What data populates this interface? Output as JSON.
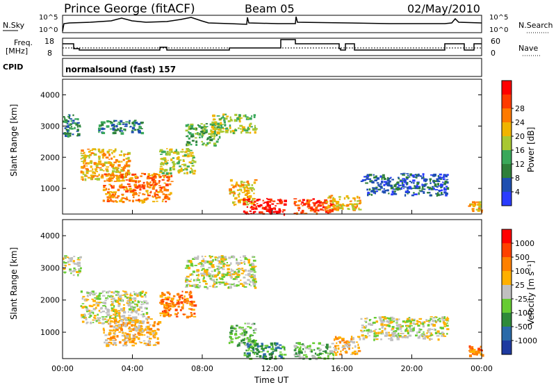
{
  "header": {
    "title": "Prince George (fitACF)",
    "beam": "Beam 05",
    "date": "02/May/2010"
  },
  "panels": {
    "nsky": {
      "label": "N.Sky",
      "ticks": [
        "10^5",
        "10^0"
      ]
    },
    "nsearch": {
      "label": "N.Search",
      "ticks": [
        "10^5",
        "10^0"
      ]
    },
    "freq": {
      "label_top": "Freq.",
      "label_bottom": "[MHz]",
      "ticks": [
        "18",
        "8"
      ]
    },
    "nave": {
      "label": "Nave",
      "ticks": [
        "60",
        "0"
      ]
    },
    "cpid": {
      "label": "CPID",
      "text": "normalsound (fast) 157"
    }
  },
  "colors": {
    "power": [
      "#2a3cff",
      "#1e4fb0",
      "#2e7f3a",
      "#3aa85a",
      "#a8c832",
      "#f0b400",
      "#ff7a00",
      "#ff3a00",
      "#ff0000"
    ],
    "velocity": [
      "#1e3aa0",
      "#2a6aa8",
      "#2e8a3a",
      "#66cc33",
      "#c0c0c0",
      "#ffb000",
      "#ff8000",
      "#ff4000",
      "#ff0000"
    ]
  },
  "chart_data": [
    {
      "type": "heatmap",
      "name": "power",
      "xlabel": "",
      "ylabel": "Slant Range [km]",
      "xlim": [
        0,
        24
      ],
      "ylim": [
        180,
        4500
      ],
      "yticks": [
        "1000",
        "2000",
        "3000",
        "4000"
      ],
      "colorbar": {
        "label": "Power [dB]",
        "ticks": [
          "4",
          "8",
          "12",
          "16",
          "20",
          "24",
          "28"
        ]
      },
      "regions": [
        {
          "t0": 0.0,
          "t1": 1.0,
          "r0": 2700,
          "r1": 3400,
          "level": 2
        },
        {
          "t0": 1.0,
          "t1": 3.8,
          "r0": 1300,
          "r1": 2300,
          "level": 5
        },
        {
          "t0": 2.3,
          "t1": 6.2,
          "r0": 600,
          "r1": 1500,
          "level": 6
        },
        {
          "t0": 2.0,
          "t1": 4.5,
          "r0": 2800,
          "r1": 3200,
          "level": 2
        },
        {
          "t0": 5.5,
          "t1": 7.5,
          "r0": 1500,
          "r1": 2300,
          "level": 4
        },
        {
          "t0": 7.0,
          "t1": 9.0,
          "r0": 2400,
          "r1": 3100,
          "level": 3
        },
        {
          "t0": 8.5,
          "t1": 11.0,
          "r0": 2800,
          "r1": 3400,
          "level": 4
        },
        {
          "t0": 9.5,
          "t1": 11.0,
          "r0": 500,
          "r1": 1300,
          "level": 5
        },
        {
          "t0": 10.3,
          "t1": 12.7,
          "r0": 200,
          "r1": 700,
          "level": 8
        },
        {
          "t0": 13.2,
          "t1": 15.5,
          "r0": 200,
          "r1": 700,
          "level": 7
        },
        {
          "t0": 15.0,
          "t1": 17.0,
          "r0": 300,
          "r1": 800,
          "level": 5
        },
        {
          "t0": 17.0,
          "t1": 22.0,
          "r0": 800,
          "r1": 1500,
          "level": 1
        },
        {
          "t0": 23.2,
          "t1": 24.0,
          "r0": 300,
          "r1": 600,
          "level": 5
        }
      ]
    },
    {
      "type": "heatmap",
      "name": "velocity",
      "xlabel": "Time UT",
      "ylabel": "Slant Range [km]",
      "xlim": [
        0,
        24
      ],
      "ylim": [
        180,
        4500
      ],
      "xticks": [
        "00:00",
        "04:00",
        "08:00",
        "12:00",
        "16:00",
        "20:00",
        "00:00"
      ],
      "yticks": [
        "1000",
        "2000",
        "3000",
        "4000"
      ],
      "colorbar": {
        "label": "Velocity [m s⁻¹]",
        "ticks": [
          "1000",
          "500",
          "100",
          "25",
          "-25",
          "-100",
          "-500",
          "-1000"
        ]
      },
      "regions": [
        {
          "t0": 0.0,
          "t1": 1.0,
          "r0": 2800,
          "r1": 3400,
          "level": 4
        },
        {
          "t0": 1.0,
          "t1": 4.8,
          "r0": 1300,
          "r1": 2300,
          "level": 4
        },
        {
          "t0": 2.3,
          "t1": 5.5,
          "r0": 600,
          "r1": 1500,
          "level": 5
        },
        {
          "t0": 5.5,
          "t1": 7.5,
          "r0": 1500,
          "r1": 2300,
          "level": 6
        },
        {
          "t0": 7.0,
          "t1": 11.0,
          "r0": 2400,
          "r1": 3400,
          "level": 4
        },
        {
          "t0": 9.5,
          "t1": 11.0,
          "r0": 600,
          "r1": 1300,
          "level": 3
        },
        {
          "t0": 10.3,
          "t1": 12.7,
          "r0": 200,
          "r1": 700,
          "level": 2
        },
        {
          "t0": 13.2,
          "t1": 15.5,
          "r0": 200,
          "r1": 700,
          "level": 3
        },
        {
          "t0": 15.5,
          "t1": 17.0,
          "r0": 300,
          "r1": 900,
          "level": 5
        },
        {
          "t0": 17.0,
          "t1": 22.0,
          "r0": 800,
          "r1": 1500,
          "level": 4
        },
        {
          "t0": 23.2,
          "t1": 24.0,
          "r0": 300,
          "r1": 600,
          "level": 6
        }
      ]
    }
  ]
}
